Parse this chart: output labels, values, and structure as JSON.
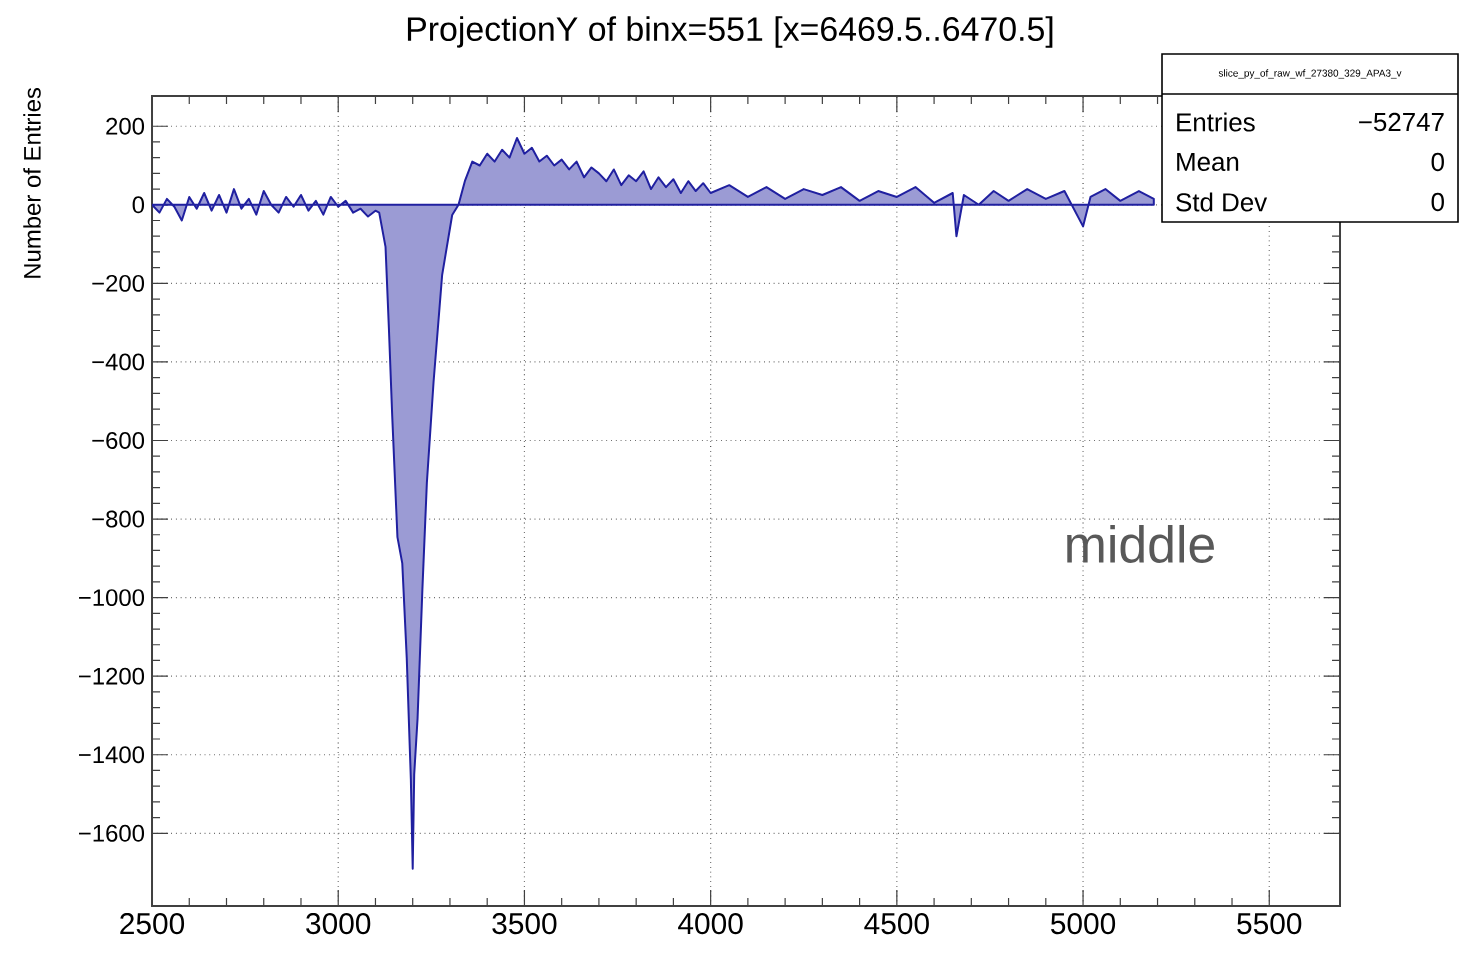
{
  "chart_data": {
    "type": "area",
    "title": "ProjectionY of binx=551 [x=6469.5..6470.5]",
    "ylabel": "Number of Entries",
    "annotations": [
      "middle",
      "slice_py_of_raw_wf_27380_329_APA3_v",
      "Entries",
      "−52747",
      "Mean",
      "0",
      "Std Dev",
      "0"
    ],
    "xlim": [
      2500,
      5690
    ],
    "ylim": [
      -1785,
      277
    ],
    "xticks": [
      2500,
      3000,
      3500,
      4000,
      4500,
      5000,
      5500
    ],
    "yticks": [
      {
        "value": 200,
        "label": "200"
      },
      {
        "value": 0,
        "label": "0"
      },
      {
        "value": -200,
        "label": "−200"
      },
      {
        "value": -400,
        "label": "−400"
      },
      {
        "value": -600,
        "label": "−600"
      },
      {
        "value": -800,
        "label": "−800"
      },
      {
        "value": -1000,
        "label": "−1000"
      },
      {
        "value": -1200,
        "label": "−1200"
      },
      {
        "value": -1400,
        "label": "−1400"
      },
      {
        "value": -1600,
        "label": "−1600"
      }
    ],
    "grid": true,
    "series": [
      {
        "color": "#2020a0",
        "x": [
          2500,
          2520,
          2540,
          2560,
          2580,
          2600,
          2620,
          2640,
          2660,
          2680,
          2700,
          2720,
          2740,
          2760,
          2780,
          2800,
          2820,
          2840,
          2860,
          2880,
          2900,
          2920,
          2940,
          2960,
          2980,
          3000,
          3020,
          3040,
          3060,
          3080,
          3100,
          3110,
          3127,
          3136,
          3145,
          3159,
          3172,
          3184,
          3195,
          3200,
          3204,
          3213,
          3226,
          3238,
          3256,
          3279,
          3306,
          3323,
          3340,
          3360,
          3380,
          3400,
          3420,
          3440,
          3460,
          3480,
          3500,
          3520,
          3540,
          3560,
          3580,
          3600,
          3620,
          3640,
          3660,
          3680,
          3700,
          3720,
          3740,
          3760,
          3780,
          3800,
          3820,
          3840,
          3860,
          3880,
          3900,
          3920,
          3940,
          3960,
          3980,
          4000,
          4050,
          4100,
          4150,
          4200,
          4250,
          4300,
          4350,
          4400,
          4450,
          4500,
          4550,
          4600,
          4650,
          4660,
          4680,
          4720,
          4760,
          4800,
          4850,
          4900,
          4950,
          5000,
          5020,
          5060,
          5100,
          5150,
          5190
        ],
        "values": [
          0,
          -20,
          15,
          -5,
          -40,
          20,
          -10,
          30,
          -15,
          25,
          -20,
          40,
          -10,
          15,
          -25,
          35,
          0,
          -20,
          20,
          -5,
          25,
          -15,
          10,
          -25,
          20,
          -5,
          10,
          -20,
          -10,
          -30,
          -15,
          -20,
          -107,
          -313,
          -538,
          -846,
          -913,
          -1154,
          -1462,
          -1690,
          -1450,
          -1308,
          -979,
          -708,
          -451,
          -179,
          -26,
          0,
          60,
          110,
          100,
          130,
          110,
          140,
          120,
          170,
          130,
          145,
          110,
          125,
          100,
          115,
          90,
          110,
          70,
          95,
          80,
          60,
          90,
          50,
          75,
          60,
          85,
          40,
          70,
          45,
          65,
          30,
          60,
          35,
          55,
          30,
          50,
          20,
          45,
          15,
          40,
          25,
          45,
          10,
          35,
          20,
          45,
          5,
          30,
          -80,
          25,
          0,
          35,
          10,
          40,
          15,
          35,
          -55,
          20,
          40,
          10,
          35,
          15
        ]
      }
    ]
  }
}
